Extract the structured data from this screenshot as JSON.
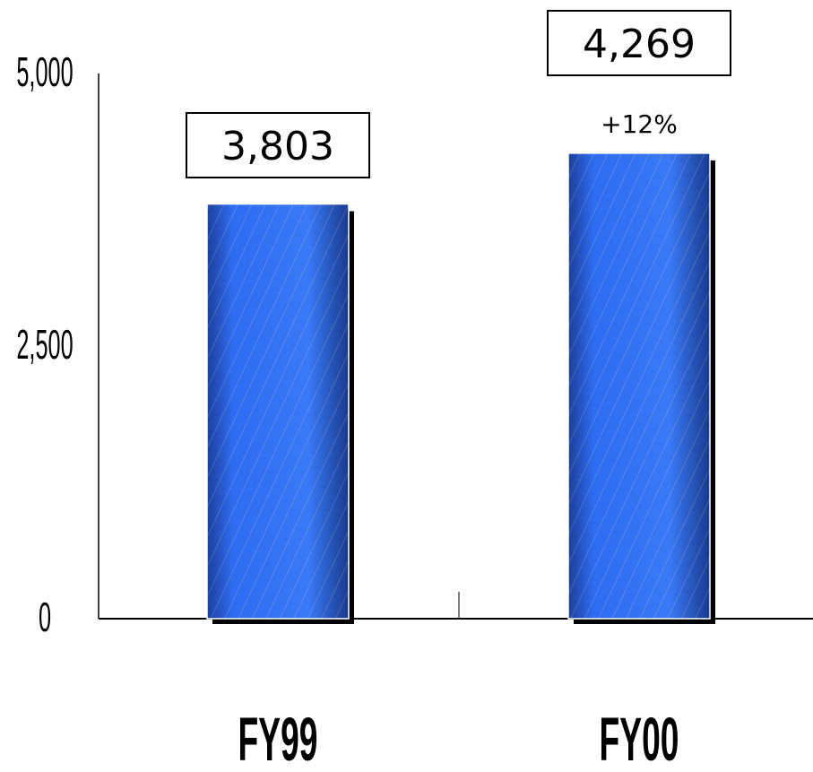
{
  "chart_data": {
    "type": "bar",
    "categories": [
      "FY99",
      "FY00"
    ],
    "values": [
      3803,
      4269
    ],
    "data_labels": [
      "3,803",
      "4,269"
    ],
    "annotations": [
      {
        "category": "FY00",
        "text": "+12%"
      }
    ],
    "yticks": [
      {
        "value": 0,
        "label": "0"
      },
      {
        "value": 2500,
        "label": "2,500"
      },
      {
        "value": 5000,
        "label": "5,000"
      }
    ],
    "ylim": [
      0,
      5000
    ],
    "grid": false,
    "legend": "none",
    "colors": {
      "bar": "#2e6cf0",
      "bar_dark": "#17337a",
      "shadow": "#000000"
    }
  }
}
